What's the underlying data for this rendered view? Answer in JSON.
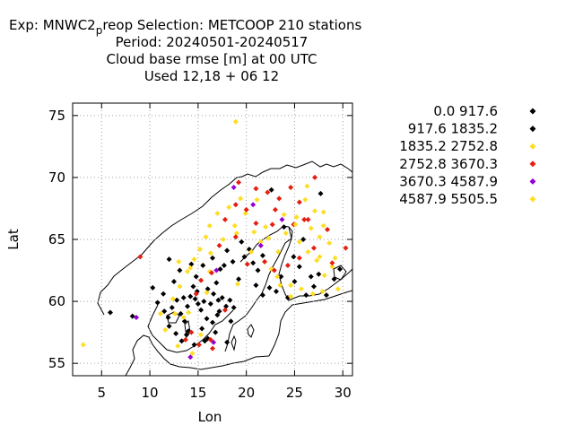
{
  "chart_data": {
    "type": "scatter",
    "title_lines": [
      "Exp: MNWC2_preop   Selection: METCOOP    210 stations",
      "Period: 20240501-20240517",
      "Cloud base rmse [m] at  00 UTC",
      "Used  12,18 + 06 12"
    ],
    "title_exp_prefix": "Exp: MNWC2",
    "title_exp_sub": "p",
    "title_exp_suffix": "reop   Selection: METCOOP    210 stations",
    "xlabel": "Lon",
    "ylabel": "Lat",
    "xlim": [
      2,
      31
    ],
    "ylim": [
      54,
      76
    ],
    "xticks": [
      5,
      10,
      15,
      20,
      25,
      30
    ],
    "yticks": [
      55,
      60,
      65,
      70,
      75
    ],
    "grid": true,
    "legend_position": "right",
    "series": [
      {
        "name": "0.0 917.6",
        "color": "#000000",
        "points": [
          [
            12.0,
            63.4
          ],
          [
            10.8,
            59.9
          ],
          [
            11.5,
            59.2
          ],
          [
            11.9,
            58.7
          ],
          [
            12.3,
            59.5
          ],
          [
            12.8,
            60.1
          ],
          [
            13.2,
            59.0
          ],
          [
            13.6,
            58.4
          ],
          [
            13.9,
            59.6
          ],
          [
            14.2,
            60.4
          ],
          [
            14.5,
            61.2
          ],
          [
            14.9,
            60.8
          ],
          [
            15.3,
            59.3
          ],
          [
            15.6,
            60.0
          ],
          [
            15.9,
            58.6
          ],
          [
            16.3,
            59.8
          ],
          [
            16.6,
            60.6
          ],
          [
            16.9,
            61.5
          ],
          [
            17.2,
            59.2
          ],
          [
            17.5,
            60.3
          ],
          [
            17.9,
            59.6
          ],
          [
            18.3,
            60.1
          ],
          [
            18.7,
            59.5
          ],
          [
            19.2,
            61.8
          ],
          [
            18.0,
            64.1
          ],
          [
            18.6,
            63.2
          ],
          [
            17.3,
            62.6
          ],
          [
            16.5,
            63.5
          ],
          [
            15.5,
            62.9
          ],
          [
            14.3,
            63.0
          ],
          [
            13.1,
            62.5
          ],
          [
            12.7,
            57.4
          ],
          [
            13.3,
            56.8
          ],
          [
            14.0,
            57.6
          ],
          [
            14.6,
            56.5
          ],
          [
            15.4,
            57.8
          ],
          [
            16.0,
            57.0
          ],
          [
            16.5,
            58.3
          ],
          [
            17.0,
            58.9
          ],
          [
            14.8,
            62.0
          ],
          [
            19.8,
            63.6
          ],
          [
            20.3,
            64.2
          ],
          [
            21.0,
            61.3
          ],
          [
            21.7,
            60.5
          ],
          [
            22.4,
            61.1
          ],
          [
            23.1,
            60.8
          ],
          [
            23.6,
            62.0
          ],
          [
            24.3,
            60.3
          ],
          [
            25.0,
            61.6
          ],
          [
            25.5,
            62.8
          ],
          [
            26.2,
            60.5
          ],
          [
            27.0,
            61.2
          ],
          [
            27.5,
            62.2
          ],
          [
            28.3,
            60.5
          ],
          [
            29.1,
            61.8
          ],
          [
            29.7,
            62.6
          ],
          [
            10.3,
            61.1
          ],
          [
            12.5,
            61.6
          ],
          [
            17.1,
            60.1
          ],
          [
            20.7,
            63.1
          ],
          [
            21.7,
            63.7
          ],
          [
            25.9,
            65.0
          ],
          [
            27.7,
            68.7
          ],
          [
            22.6,
            69.0
          ],
          [
            8.2,
            58.8
          ],
          [
            5.9,
            59.1
          ],
          [
            14.7,
            60.2
          ],
          [
            18.0,
            56.7
          ]
        ]
      },
      {
        "name": "917.6 1835.2",
        "color": "#000000",
        "points": [
          [
            15.0,
            59.8
          ],
          [
            13.5,
            60.3
          ],
          [
            16.0,
            61.0
          ],
          [
            18.4,
            58.4
          ],
          [
            12.0,
            58.0
          ],
          [
            15.7,
            56.8
          ],
          [
            21.2,
            62.5
          ],
          [
            24.9,
            63.6
          ],
          [
            26.7,
            62.0
          ],
          [
            23.9,
            66.0
          ],
          [
            19.5,
            64.8
          ],
          [
            17.7,
            62.9
          ],
          [
            11.4,
            60.6
          ],
          [
            13.8,
            57.3
          ],
          [
            16.8,
            57.5
          ]
        ]
      },
      {
        "name": "1835.2 2752.8",
        "color": "#ffdd22",
        "points": [
          [
            18.9,
            74.5
          ],
          [
            3.1,
            56.5
          ],
          [
            13.0,
            63.2
          ],
          [
            14.6,
            63.4
          ],
          [
            15.2,
            64.2
          ],
          [
            16.2,
            62.4
          ],
          [
            17.6,
            65.0
          ],
          [
            18.8,
            66.1
          ],
          [
            19.9,
            67.1
          ],
          [
            21.1,
            68.2
          ],
          [
            22.3,
            65.1
          ],
          [
            23.3,
            64.0
          ],
          [
            24.1,
            65.5
          ],
          [
            25.2,
            66.8
          ],
          [
            26.1,
            68.2
          ],
          [
            27.1,
            67.3
          ],
          [
            28.0,
            66.1
          ],
          [
            28.6,
            64.7
          ],
          [
            29.2,
            63.5
          ],
          [
            26.4,
            64.0
          ],
          [
            27.3,
            63.3
          ],
          [
            28.1,
            62.1
          ],
          [
            25.7,
            61.0
          ],
          [
            24.6,
            60.4
          ],
          [
            23.5,
            61.3
          ],
          [
            22.6,
            62.6
          ],
          [
            21.5,
            64.8
          ],
          [
            20.8,
            65.6
          ],
          [
            19.4,
            68.3
          ],
          [
            18.2,
            67.6
          ],
          [
            17.0,
            67.1
          ],
          [
            16.2,
            66.1
          ],
          [
            15.8,
            65.2
          ],
          [
            13.9,
            62.4
          ],
          [
            12.4,
            60.2
          ],
          [
            11.1,
            59.0
          ],
          [
            11.6,
            57.7
          ],
          [
            12.9,
            56.4
          ],
          [
            14.4,
            55.8
          ],
          [
            15.3,
            57.3
          ],
          [
            14.0,
            59.1
          ],
          [
            13.1,
            61.2
          ],
          [
            16.3,
            63.9
          ],
          [
            26.9,
            60.6
          ],
          [
            27.9,
            60.8
          ],
          [
            29.5,
            61.0
          ],
          [
            28.9,
            62.8
          ],
          [
            27.6,
            63.6
          ],
          [
            26.7,
            65.9
          ],
          [
            27.6,
            65.2
          ],
          [
            25.5,
            64.8
          ],
          [
            26.3,
            69.3
          ],
          [
            23.9,
            67.0
          ],
          [
            22.0,
            66.0
          ],
          [
            20.5,
            64.0
          ],
          [
            19.0,
            65.5
          ],
          [
            23.2,
            62.0
          ],
          [
            24.6,
            61.3
          ],
          [
            28.0,
            67.2
          ],
          [
            13.5,
            58.7
          ],
          [
            14.2,
            62.7
          ]
        ]
      },
      {
        "name": "2752.8 3670.3",
        "color": "#e51e10",
        "points": [
          [
            19.2,
            69.6
          ],
          [
            21.0,
            69.1
          ],
          [
            22.2,
            68.8
          ],
          [
            23.4,
            68.3
          ],
          [
            24.6,
            69.2
          ],
          [
            25.5,
            68.0
          ],
          [
            27.1,
            70.0
          ],
          [
            26.0,
            66.6
          ],
          [
            28.4,
            65.8
          ],
          [
            30.3,
            64.3
          ],
          [
            28.9,
            63.1
          ],
          [
            27.0,
            64.3
          ],
          [
            25.5,
            63.5
          ],
          [
            24.3,
            62.9
          ],
          [
            22.9,
            62.5
          ],
          [
            21.9,
            63.2
          ],
          [
            21.0,
            66.3
          ],
          [
            20.0,
            67.4
          ],
          [
            18.9,
            67.8
          ],
          [
            17.8,
            66.6
          ],
          [
            18.9,
            65.2
          ],
          [
            17.2,
            64.5
          ],
          [
            16.4,
            62.3
          ],
          [
            15.3,
            61.7
          ],
          [
            14.8,
            60.6
          ],
          [
            13.7,
            56.9
          ],
          [
            14.3,
            57.5
          ],
          [
            15.1,
            56.5
          ],
          [
            16.3,
            56.9
          ],
          [
            9.0,
            63.6
          ],
          [
            17.8,
            59.3
          ],
          [
            20.1,
            63.0
          ],
          [
            24.9,
            66.2
          ],
          [
            26.4,
            66.6
          ],
          [
            22.7,
            66.2
          ],
          [
            23.0,
            67.4
          ],
          [
            16.5,
            56.2
          ]
        ]
      },
      {
        "name": "3670.3 4587.9",
        "color": "#9400d3",
        "points": [
          [
            18.7,
            69.2
          ],
          [
            20.7,
            67.8
          ],
          [
            23.7,
            66.6
          ],
          [
            21.5,
            64.5
          ],
          [
            16.9,
            62.5
          ],
          [
            8.6,
            58.7
          ],
          [
            14.2,
            55.5
          ],
          [
            16.6,
            56.7
          ]
        ]
      },
      {
        "name": "4587.9 5505.5",
        "color": "#ffdd22",
        "points": [
          [
            25.1,
            66.2
          ],
          [
            19.1,
            61.4
          ],
          [
            15.9,
            60.7
          ],
          [
            12.6,
            59.0
          ]
        ]
      }
    ]
  }
}
